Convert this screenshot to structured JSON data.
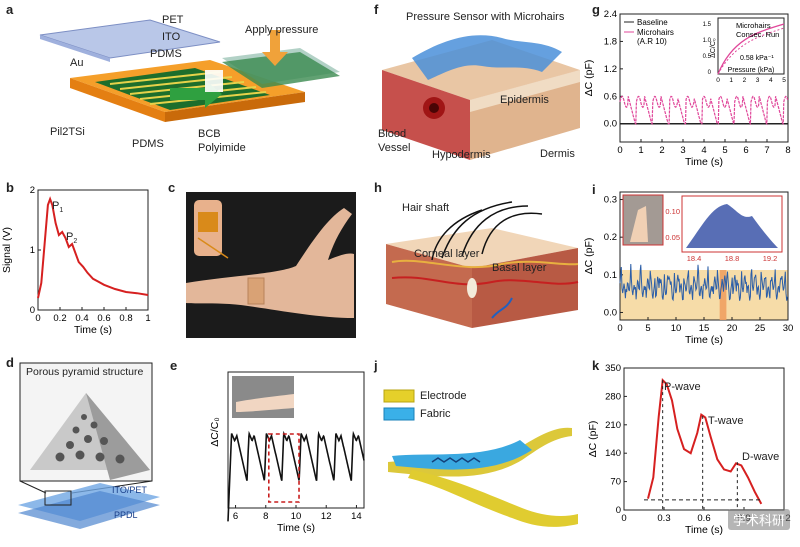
{
  "panels": {
    "a": {
      "letter": "a",
      "labels": {
        "pet": "PET",
        "ito": "ITO",
        "pdms_top": "PDMS",
        "au": "Au",
        "apply": "Apply pressure",
        "pil": "Pil2TSi",
        "pdms_bot": "PDMS",
        "bcb": "BCB",
        "polyimide": "Polyimide"
      }
    },
    "b": {
      "letter": "b",
      "p1": "P",
      "p1sub": "1",
      "p2": "P",
      "p2sub": "2"
    },
    "c": {
      "letter": "c"
    },
    "d": {
      "letter": "d",
      "title": "Porous pyramid structure",
      "ito": "ITO/PET",
      "ppdl": "PPDL"
    },
    "e": {
      "letter": "e"
    },
    "f": {
      "letter": "f",
      "sensor": "Pressure Sensor with Microhairs",
      "epidermis": "Epidermis",
      "blood": "Blood",
      "vessel": "Vessel",
      "hypodermis": "Hypodermis",
      "dermis": "Dermis"
    },
    "g": {
      "letter": "g",
      "inset_ylabel": "ΔC/C₀",
      "inset_note": "0.58 kPa⁻¹"
    },
    "h": {
      "letter": "h",
      "hair": "Hair shaft",
      "corneal": "Corneal layer",
      "basal": "Basal layer"
    },
    "i": {
      "letter": "i"
    },
    "j": {
      "letter": "j",
      "electrode": "Electrode",
      "fabric": "Fabric"
    },
    "k": {
      "letter": "k",
      "pwave": "P-wave",
      "twave": "T-wave",
      "dwave": "D-wave"
    }
  },
  "watermark": "学术科研",
  "chart_data": [
    {
      "id": "b",
      "type": "line",
      "xlabel": "Time (s)",
      "ylabel": "Signal (V)",
      "xlim": [
        0,
        1
      ],
      "ylim": [
        0,
        2
      ],
      "xticks": [
        "0",
        "0.2",
        "0.4",
        "0.6",
        "0.8",
        "1"
      ],
      "yticks": [
        "0",
        "1",
        "2"
      ],
      "series": [
        {
          "x": [
            0,
            0.03,
            0.06,
            0.09,
            0.11,
            0.13,
            0.16,
            0.19,
            0.22,
            0.25,
            0.28,
            0.31,
            0.34,
            0.37,
            0.41,
            0.45,
            0.5,
            0.55,
            0.6,
            0.7,
            0.8,
            0.9,
            1.0
          ],
          "values": [
            0.2,
            0.45,
            1.1,
            1.75,
            1.85,
            1.75,
            1.45,
            1.25,
            1.3,
            1.2,
            1.05,
            1.1,
            0.95,
            0.8,
            0.72,
            0.62,
            0.52,
            0.47,
            0.42,
            0.35,
            0.3,
            0.28,
            0.25
          ]
        }
      ],
      "color": "#d62020"
    },
    {
      "id": "e",
      "type": "line",
      "xlabel": "Time (s)",
      "ylabel": "ΔC/C₀",
      "xlim": [
        5.5,
        14.5
      ],
      "xticks": [
        "6",
        "8",
        "10",
        "12",
        "14"
      ],
      "xtick_values": [
        6,
        8,
        10,
        12,
        14
      ],
      "period": 1.15,
      "highlight_x": [
        8.2,
        10.2
      ],
      "color": "#111"
    },
    {
      "id": "g",
      "type": "line",
      "xlabel": "Time (s)",
      "ylabel": "ΔC (pF)",
      "xlim": [
        0,
        8
      ],
      "ylim": [
        -0.4,
        2.4
      ],
      "xticks": [
        "0",
        "1",
        "2",
        "3",
        "4",
        "5",
        "6",
        "7",
        "8"
      ],
      "yticks": [
        "0.0",
        "0.6",
        "1.2",
        "1.8",
        "2.4"
      ],
      "legend": [
        "Baseline",
        "Microhairs",
        "(A.R 10)"
      ],
      "series": [
        {
          "name": "Baseline",
          "values_const": 0.0,
          "color": "#222"
        },
        {
          "name": "Microhairs",
          "peak": 0.6,
          "period": 0.78,
          "color": "#e0479a"
        }
      ],
      "inset": {
        "xlabel": "Pressure (kPa)",
        "xticks": [
          "0",
          "1",
          "2",
          "3",
          "4",
          "5"
        ],
        "yticks": [
          "0",
          "0.5",
          "1.0",
          "1.5"
        ],
        "legend": [
          "Microhairs",
          "Consec. Run"
        ]
      }
    },
    {
      "id": "i",
      "type": "line",
      "xlabel": "Time (s)",
      "ylabel": "ΔC (pF)",
      "xlim": [
        0,
        30
      ],
      "ylim": [
        -0.02,
        0.32
      ],
      "xticks": [
        "0",
        "5",
        "10",
        "15",
        "20",
        "25",
        "30"
      ],
      "yticks": [
        "0.0",
        "0.1",
        "0.2",
        "0.3"
      ],
      "color": "#2b5ea8",
      "highlight_x": [
        17.8,
        19.0
      ],
      "inset": {
        "xticks": [
          "18.4",
          "18.8",
          "19.2"
        ],
        "yticks": [
          "0.05",
          "0.10"
        ]
      }
    },
    {
      "id": "k",
      "type": "line",
      "xlabel": "Time (s)",
      "ylabel": "ΔC (pF)",
      "xlim": [
        0,
        1.2
      ],
      "ylim": [
        0,
        350
      ],
      "xticks": [
        "0",
        "0.3",
        "0.6",
        "0.9",
        "1.2"
      ],
      "yticks": [
        "0",
        "70",
        "140",
        "210",
        "280",
        "350"
      ],
      "series": [
        {
          "x": [
            0.18,
            0.22,
            0.26,
            0.29,
            0.32,
            0.36,
            0.4,
            0.45,
            0.5,
            0.55,
            0.58,
            0.61,
            0.65,
            0.7,
            0.75,
            0.8,
            0.84,
            0.88,
            0.93,
            0.98,
            1.03
          ],
          "values": [
            28,
            80,
            230,
            320,
            310,
            270,
            200,
            150,
            140,
            190,
            235,
            228,
            180,
            125,
            100,
            95,
            115,
            110,
            80,
            45,
            15
          ]
        }
      ],
      "color": "#d62020"
    }
  ]
}
